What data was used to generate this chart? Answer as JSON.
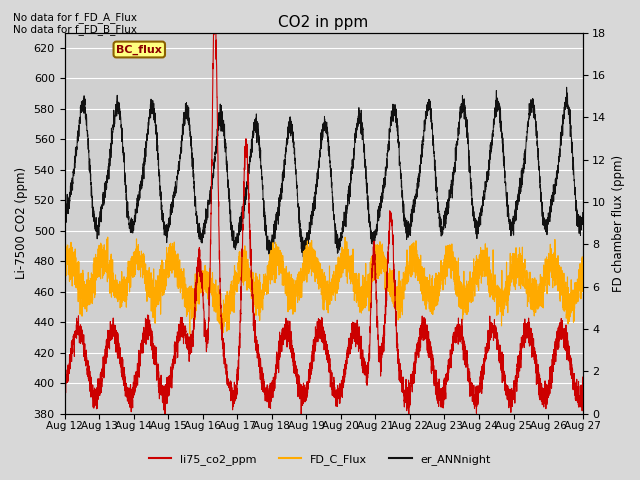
{
  "title": "CO2 in ppm",
  "ylabel_left": "Li-7500 CO2 (ppm)",
  "ylabel_right": "FD chamber flux (ppm)",
  "ylim_left": [
    380,
    630
  ],
  "ylim_right": [
    0,
    18
  ],
  "yticks_left": [
    380,
    400,
    420,
    440,
    460,
    480,
    500,
    520,
    540,
    560,
    580,
    600,
    620
  ],
  "yticks_right": [
    0,
    2,
    4,
    6,
    8,
    10,
    12,
    14,
    16,
    18
  ],
  "x_labels": [
    "Aug 12",
    "Aug 13",
    "Aug 14",
    "Aug 15",
    "Aug 16",
    "Aug 17",
    "Aug 18",
    "Aug 19",
    "Aug 20",
    "Aug 21",
    "Aug 22",
    "Aug 23",
    "Aug 24",
    "Aug 25",
    "Aug 26",
    "Aug 27"
  ],
  "color_red": "#cc0000",
  "color_orange": "#ffaa00",
  "color_black": "#111111",
  "fig_bg": "#d8d8d8",
  "plot_bg": "#d0d0d0",
  "text_no_data": [
    "No data for f_FD_A_Flux",
    "No data for f_FD_B_Flux"
  ],
  "bc_flux_label": "BC_flux",
  "legend_labels": [
    "li75_co2_ppm",
    "FD_C_Flux",
    "er_ANNnight"
  ]
}
